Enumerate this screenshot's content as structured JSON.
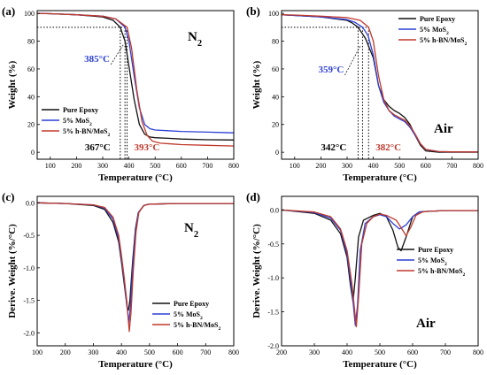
{
  "chart_data": [
    {
      "panel": "(a)",
      "type": "line",
      "atmosphere": "N",
      "atmosphere_sub": "2",
      "xlabel": "Temperature (°C)",
      "ylabel": "Weight (%)",
      "xlim": [
        50,
        800
      ],
      "ylim": [
        -5,
        102
      ],
      "xticks": [
        100,
        200,
        300,
        400,
        500,
        600,
        700,
        800
      ],
      "yticks": [
        0,
        20,
        40,
        60,
        80,
        100
      ],
      "legend_position": "bottom-left",
      "dotted_level": 90,
      "dotted_x": [
        367,
        385,
        393
      ],
      "annotations": [
        {
          "text": "385°C",
          "x": 385,
          "color": "#2b3fd6"
        },
        {
          "text": "367°C",
          "x": 367,
          "color": "#000000"
        },
        {
          "text": "393°C",
          "x": 393,
          "color": "#c0392b"
        }
      ],
      "series": [
        {
          "name": "Pure Epoxy",
          "color": "#111111",
          "x": [
            50,
            100,
            200,
            300,
            340,
            367,
            385,
            400,
            420,
            440,
            460,
            480,
            500,
            550,
            600,
            700,
            800
          ],
          "y": [
            100,
            99.8,
            99,
            97.5,
            95,
            90,
            80,
            62,
            38,
            20,
            13,
            11,
            10.5,
            10,
            9.5,
            9,
            8.8
          ]
        },
        {
          "name": "5% MoS",
          "sub": "2",
          "color": "#2b3fd6",
          "x": [
            50,
            100,
            200,
            300,
            350,
            385,
            400,
            420,
            440,
            460,
            480,
            500,
            550,
            600,
            700,
            800
          ],
          "y": [
            100,
            99.8,
            99,
            98,
            96,
            90,
            80,
            55,
            32,
            20,
            17,
            16,
            15.5,
            15,
            14.5,
            14
          ]
        },
        {
          "name": "5% h-BN/MoS",
          "sub": "2",
          "color": "#c0392b",
          "x": [
            50,
            100,
            200,
            300,
            350,
            393,
            410,
            430,
            450,
            470,
            490,
            520,
            560,
            600,
            700,
            800
          ],
          "y": [
            100,
            99.8,
            99,
            98,
            96,
            90,
            75,
            45,
            22,
            12,
            8,
            6.5,
            6,
            5.5,
            5,
            4.5
          ]
        }
      ]
    },
    {
      "panel": "(b)",
      "type": "line",
      "atmosphere": "Air",
      "xlabel": "Temperature (°C)",
      "ylabel": "Weight (%)",
      "xlim": [
        50,
        800
      ],
      "ylim": [
        -5,
        102
      ],
      "xticks": [
        100,
        200,
        300,
        400,
        500,
        600,
        700,
        800
      ],
      "yticks": [
        0,
        20,
        40,
        60,
        80,
        100
      ],
      "legend_position": "top-right",
      "dotted_level": 90,
      "dotted_x": [
        342,
        359,
        382
      ],
      "annotations": [
        {
          "text": "359°C",
          "x": 359,
          "color": "#2b3fd6"
        },
        {
          "text": "342°C",
          "x": 342,
          "color": "#000000"
        },
        {
          "text": "382°C",
          "x": 382,
          "color": "#c0392b"
        }
      ],
      "series": [
        {
          "name": "Pure Epoxy",
          "color": "#111111",
          "x": [
            50,
            100,
            200,
            300,
            320,
            342,
            370,
            400,
            420,
            440,
            460,
            480,
            500,
            520,
            540,
            560,
            580,
            600,
            650,
            700,
            800
          ],
          "y": [
            99,
            98.5,
            97.5,
            95,
            93,
            90,
            82,
            68,
            48,
            38,
            33,
            30,
            28,
            25,
            20,
            12,
            5,
            1,
            0,
            0,
            0
          ]
        },
        {
          "name": "5% MoS",
          "sub": "2",
          "color": "#2b3fd6",
          "x": [
            50,
            100,
            200,
            300,
            330,
            359,
            380,
            400,
            420,
            440,
            460,
            480,
            500,
            520,
            540,
            560,
            580,
            600,
            650,
            700,
            800
          ],
          "y": [
            99,
            98.5,
            97.5,
            95.5,
            93.5,
            90,
            84,
            70,
            48,
            36,
            30,
            26,
            24,
            22,
            18,
            12,
            6,
            2,
            0.5,
            0.3,
            0.2
          ]
        },
        {
          "name": "5% h-BN/MoS",
          "sub": "2",
          "color": "#c0392b",
          "x": [
            50,
            100,
            200,
            300,
            350,
            382,
            400,
            420,
            440,
            460,
            480,
            500,
            520,
            540,
            560,
            580,
            600,
            650,
            700,
            800
          ],
          "y": [
            99,
            98.8,
            98,
            97,
            95,
            90,
            80,
            55,
            38,
            30,
            27,
            25,
            23,
            19,
            13,
            6,
            2,
            0.5,
            0.3,
            0.2
          ]
        }
      ]
    },
    {
      "panel": "(c)",
      "type": "line",
      "atmosphere": "N",
      "atmosphere_sub": "2",
      "xlabel": "Temperature (°C)",
      "ylabel": "Derive. Weight (%/°C)",
      "xlim": [
        100,
        800
      ],
      "ylim": [
        -2.2,
        0.1
      ],
      "xticks": [
        100,
        200,
        300,
        400,
        500,
        600,
        700,
        800
      ],
      "yticks": [
        0.0,
        -0.5,
        -1.0,
        -1.5,
        -2.0
      ],
      "ytick_labels": [
        "0.0",
        "-0.5",
        "-1.0",
        "-1.5",
        "-2.0"
      ],
      "legend_position": "bottom-right",
      "series": [
        {
          "name": "Pure Epoxy",
          "color": "#111111",
          "x": [
            100,
            200,
            300,
            340,
            370,
            390,
            400,
            410,
            420,
            425,
            430,
            440,
            450,
            460,
            480,
            500,
            600,
            700,
            800
          ],
          "y": [
            0,
            -0.01,
            -0.04,
            -0.1,
            -0.3,
            -0.6,
            -0.9,
            -1.25,
            -1.6,
            -1.65,
            -1.5,
            -0.9,
            -0.4,
            -0.15,
            -0.04,
            -0.02,
            -0.01,
            -0.01,
            -0.01
          ]
        },
        {
          "name": "5% MoS",
          "sub": "2",
          "color": "#2b3fd6",
          "x": [
            100,
            200,
            300,
            340,
            370,
            390,
            400,
            410,
            420,
            426,
            432,
            440,
            450,
            460,
            480,
            500,
            600,
            700,
            800
          ],
          "y": [
            0,
            -0.01,
            -0.03,
            -0.08,
            -0.25,
            -0.55,
            -0.85,
            -1.2,
            -1.6,
            -1.85,
            -1.6,
            -1.0,
            -0.45,
            -0.15,
            -0.04,
            -0.02,
            -0.01,
            -0.01,
            -0.01
          ]
        },
        {
          "name": "5% h-BN/MoS",
          "sub": "2",
          "color": "#c0392b",
          "x": [
            100,
            200,
            300,
            340,
            370,
            390,
            400,
            410,
            420,
            428,
            434,
            442,
            452,
            462,
            480,
            500,
            600,
            700,
            800
          ],
          "y": [
            0,
            -0.01,
            -0.03,
            -0.07,
            -0.22,
            -0.5,
            -0.8,
            -1.15,
            -1.55,
            -1.98,
            -1.7,
            -1.05,
            -0.45,
            -0.15,
            -0.04,
            -0.02,
            -0.01,
            -0.01,
            -0.01
          ]
        }
      ]
    },
    {
      "panel": "(d)",
      "type": "line",
      "atmosphere": "Air",
      "xlabel": "Temperature (°C)",
      "ylabel": "Derive. Weight (%/°C)",
      "xlim": [
        200,
        800
      ],
      "ylim": [
        -2.0,
        0.2
      ],
      "xticks": [
        200,
        300,
        400,
        500,
        600,
        700,
        800
      ],
      "yticks": [
        0.0,
        -0.5,
        -1.0,
        -1.5,
        -2.0
      ],
      "ytick_labels": [
        "0.0",
        "-0.5",
        "-1.0",
        "-1.5",
        "-2.0"
      ],
      "legend_position": "center-right",
      "series": [
        {
          "name": "Pure Epoxy",
          "color": "#111111",
          "x": [
            200,
            300,
            350,
            380,
            400,
            410,
            418,
            425,
            435,
            450,
            480,
            500,
            520,
            540,
            555,
            565,
            580,
            600,
            620,
            650,
            700,
            800
          ],
          "y": [
            0,
            -0.05,
            -0.15,
            -0.35,
            -0.7,
            -1.1,
            -1.35,
            -1.0,
            -0.4,
            -0.15,
            -0.08,
            -0.05,
            -0.1,
            -0.3,
            -0.55,
            -0.6,
            -0.4,
            -0.1,
            -0.03,
            -0.02,
            -0.01,
            -0.01
          ]
        },
        {
          "name": "5% MoS",
          "sub": "2",
          "color": "#2b3fd6",
          "x": [
            200,
            300,
            350,
            380,
            400,
            415,
            425,
            432,
            440,
            455,
            480,
            500,
            520,
            540,
            560,
            580,
            600,
            620,
            650,
            700,
            800
          ],
          "y": [
            0,
            -0.04,
            -0.12,
            -0.3,
            -0.65,
            -1.2,
            -1.7,
            -1.4,
            -0.6,
            -0.2,
            -0.1,
            -0.07,
            -0.1,
            -0.2,
            -0.28,
            -0.22,
            -0.1,
            -0.03,
            -0.02,
            -0.01,
            -0.01
          ]
        },
        {
          "name": "5% h-BN/MoS",
          "sub": "2",
          "color": "#c0392b",
          "x": [
            200,
            300,
            350,
            380,
            400,
            415,
            428,
            435,
            445,
            460,
            480,
            500,
            520,
            550,
            570,
            580,
            595,
            610,
            630,
            650,
            700,
            800
          ],
          "y": [
            0,
            -0.03,
            -0.1,
            -0.28,
            -0.6,
            -1.1,
            -1.72,
            -1.3,
            -0.5,
            -0.2,
            -0.1,
            -0.06,
            -0.08,
            -0.15,
            -0.3,
            -0.38,
            -0.25,
            -0.08,
            -0.03,
            -0.02,
            -0.01,
            -0.01
          ]
        }
      ]
    }
  ]
}
